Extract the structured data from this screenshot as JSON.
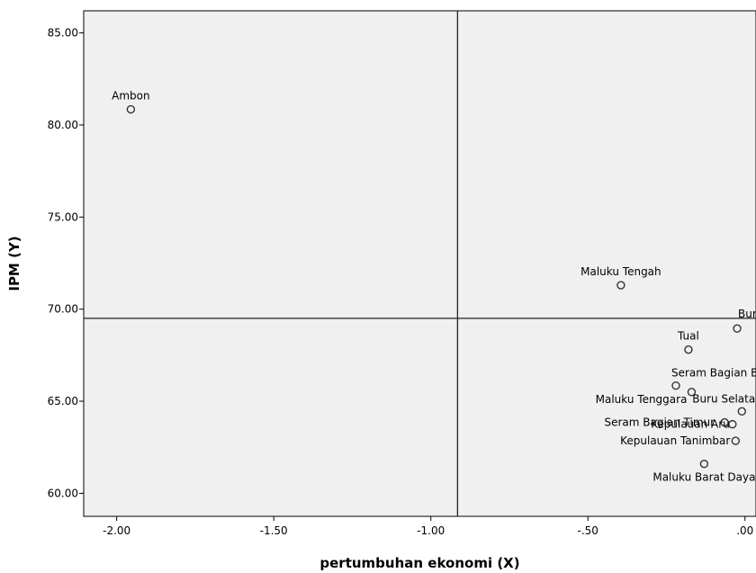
{
  "chart_data": {
    "type": "scatter",
    "xlabel": "pertumbuhan ekonomi (X)",
    "ylabel": "IPM (Y)",
    "xlim": [
      -2.105,
      0.035
    ],
    "ylim": [
      58.75,
      86.2
    ],
    "x_ticks": [
      {
        "value": -2.0,
        "label": "-2.00"
      },
      {
        "value": -1.5,
        "label": "-1.50"
      },
      {
        "value": -1.0,
        "label": "-1.00"
      },
      {
        "value": -0.5,
        "label": "-.50"
      },
      {
        "value": 0.0,
        "label": ".00"
      }
    ],
    "y_ticks": [
      {
        "value": 60,
        "label": "60.00"
      },
      {
        "value": 65,
        "label": "65.00"
      },
      {
        "value": 70,
        "label": "70.00"
      },
      {
        "value": 75,
        "label": "75.00"
      },
      {
        "value": 80,
        "label": "80.00"
      },
      {
        "value": 85,
        "label": "85.00"
      }
    ],
    "reference_lines": {
      "x": -0.915,
      "y": 69.5
    },
    "grid": false,
    "plot_background": "#f0f0f0",
    "marker_color": "#333333",
    "points": [
      {
        "label": "Ambon",
        "x": -1.955,
        "y": 80.85,
        "label_pos": "above"
      },
      {
        "label": "Maluku Tengah",
        "x": -0.395,
        "y": 71.3,
        "label_pos": "above"
      },
      {
        "label": "Buru",
        "x": -0.025,
        "y": 68.95,
        "label_pos": "above-right"
      },
      {
        "label": "Tual",
        "x": -0.18,
        "y": 67.8,
        "label_pos": "above"
      },
      {
        "label": "Seram Bagian Barat",
        "x": -0.22,
        "y": 65.85,
        "label_pos": "above-right"
      },
      {
        "label": "Maluku Tenggara",
        "x": -0.17,
        "y": 65.5,
        "label_pos": "left-below"
      },
      {
        "label": "Buru Selatan",
        "x": -0.01,
        "y": 64.45,
        "label_pos": "above-right"
      },
      {
        "label": "Seram Bagian Timur",
        "x": -0.065,
        "y": 63.85,
        "label_pos": "left"
      },
      {
        "label": "Kepulauan Aru",
        "x": -0.04,
        "y": 63.75,
        "label_pos": "left"
      },
      {
        "label": "Kepulauan Tanimbar",
        "x": -0.03,
        "y": 62.85,
        "label_pos": "left"
      },
      {
        "label": "Maluku Barat Daya",
        "x": -0.13,
        "y": 61.6,
        "label_pos": "below"
      }
    ]
  }
}
